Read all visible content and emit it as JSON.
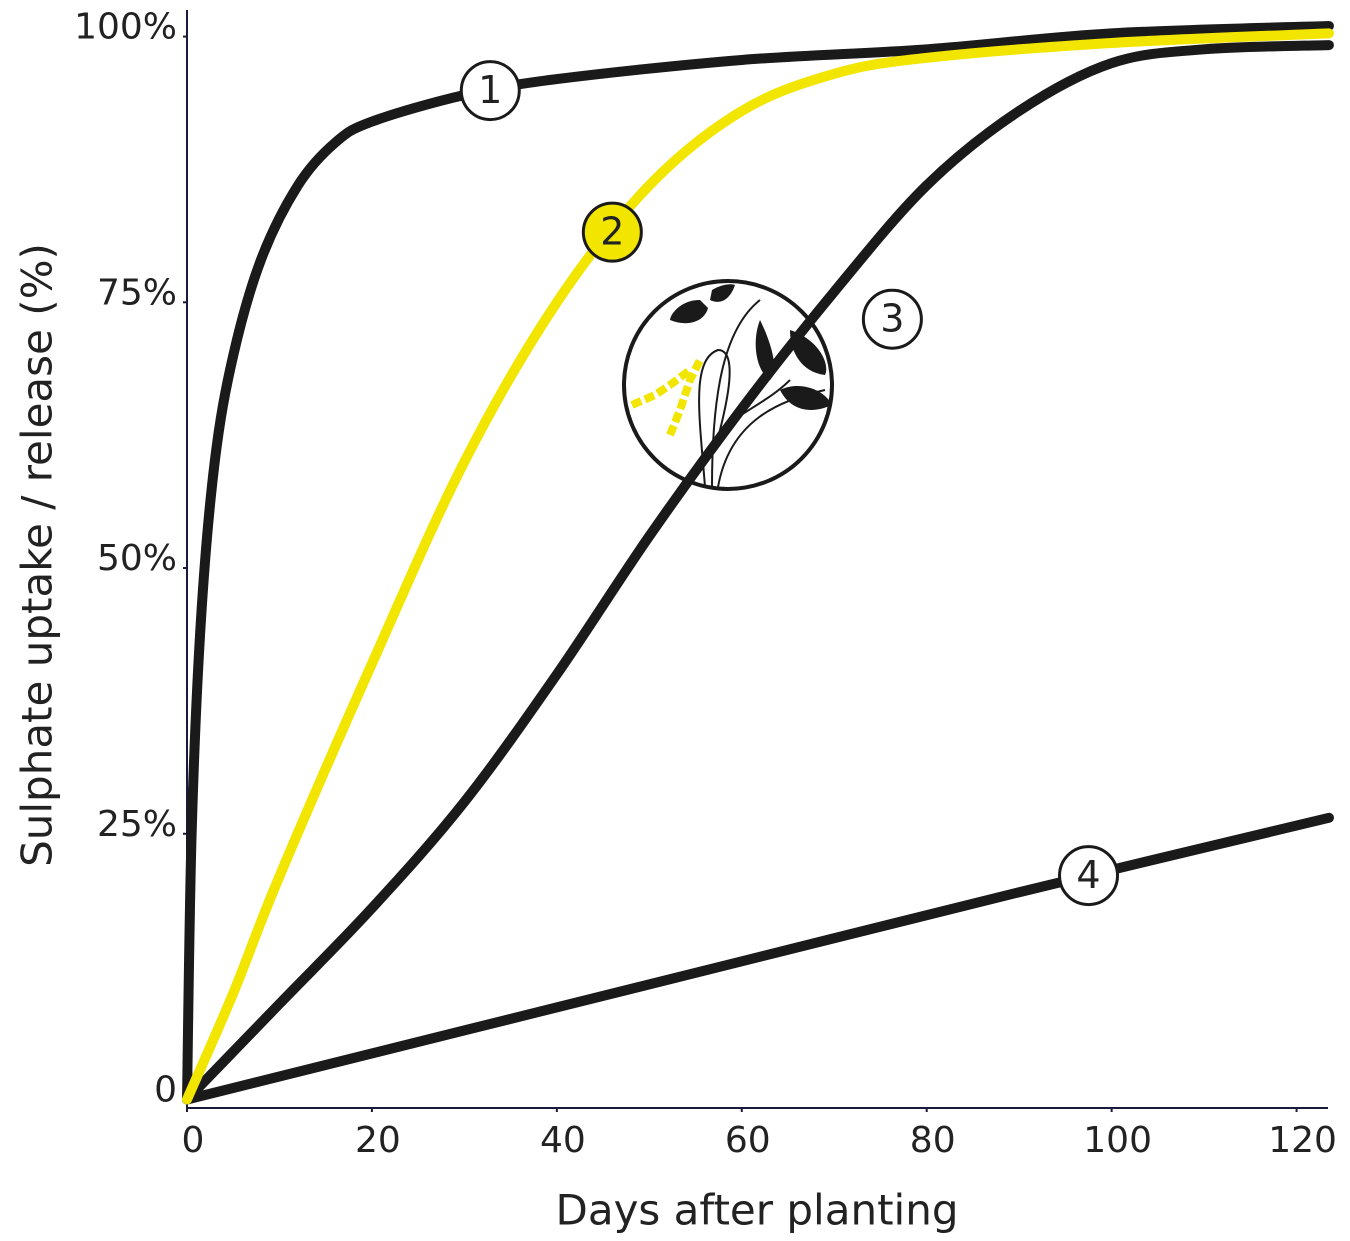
{
  "chart_data": {
    "type": "line",
    "x_label": "Days after planting",
    "y_label": "Sulphate uptake / release (%)",
    "xlim": [
      0,
      123.4
    ],
    "ylim": [
      -0.8,
      102.5
    ],
    "xticks": [
      0,
      20,
      40,
      60,
      80,
      100,
      120
    ],
    "yticks": [
      0,
      {
        "value": 25,
        "label": "25%"
      },
      {
        "value": 50,
        "label": "50%"
      },
      {
        "value": 75,
        "label": "75%"
      },
      {
        "value": 100,
        "label": "100%"
      }
    ],
    "series": [
      {
        "name": "1",
        "color": "#1a1a1a",
        "x": [
          0,
          0.5,
          1.5,
          3,
          5,
          8,
          12,
          16,
          20,
          30,
          40,
          60,
          80,
          100,
          123.5
        ],
        "values": [
          0,
          25,
          45,
          60,
          70,
          79,
          86,
          90,
          92,
          94.5,
          96,
          97.8,
          98.8,
          100.3,
          101
        ]
      },
      {
        "name": "2",
        "color": "#f2e500",
        "x": [
          0,
          5,
          10,
          20,
          30,
          40,
          50,
          60,
          70,
          80,
          100,
          123.5
        ],
        "values": [
          0,
          10,
          21,
          41,
          60,
          75,
          86,
          93,
          96.5,
          98,
          99.4,
          100.3
        ]
      },
      {
        "name": "3",
        "color": "#1a1a1a",
        "x": [
          0,
          10,
          20,
          30,
          40,
          50,
          60,
          70,
          80,
          90,
          100,
          110,
          123.5
        ],
        "values": [
          0,
          9,
          18,
          28,
          40,
          53,
          65,
          76,
          86,
          93,
          97.5,
          98.8,
          99.2
        ]
      },
      {
        "name": "4",
        "color": "#1a1a1a",
        "x": [
          0,
          30,
          60,
          90,
          123.5
        ],
        "values": [
          0,
          6.5,
          13,
          19.5,
          26.5
        ]
      }
    ]
  }
}
